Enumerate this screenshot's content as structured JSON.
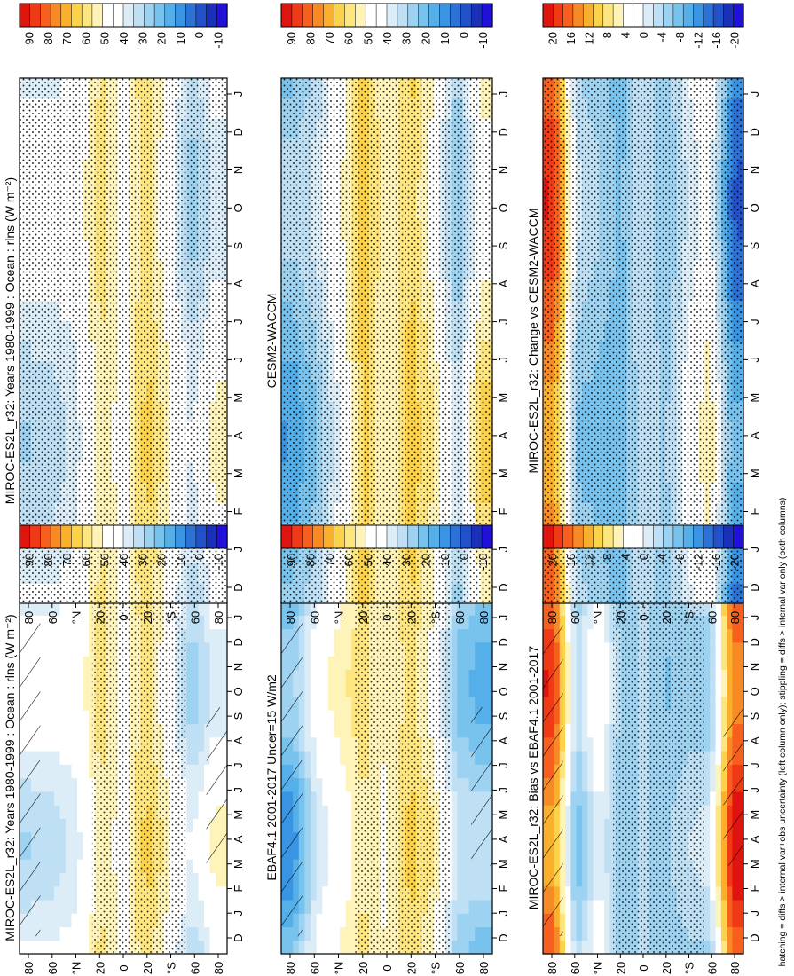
{
  "figure": {
    "footnote": "hatching = diffs > internal var+obs uncertainty (left column only); stippling = diffs > internal var only (both columns)"
  },
  "colorbars": {
    "absolute": {
      "labels": [
        "90",
        "80",
        "70",
        "60",
        "50",
        "40",
        "30",
        "20",
        "10",
        "0",
        "-10"
      ],
      "colors": [
        "#e0140e",
        "#f03a16",
        "#f65f1e",
        "#f88a26",
        "#fab02c",
        "#fbd24a",
        "#fde680",
        "#fef3b8",
        "#ffffff",
        "#ffffff",
        "#dcedf8",
        "#bfe0f4",
        "#9dd2f1",
        "#78c2ee",
        "#55b0ea",
        "#3a94e4",
        "#2c72d6",
        "#2250c8",
        "#1a30b8",
        "#2010d8"
      ]
    },
    "difference": {
      "labels": [
        "20",
        "16",
        "12",
        "8",
        "4",
        "0",
        "-4",
        "-8",
        "-12",
        "-16",
        "-20"
      ],
      "colors": [
        "#e0140e",
        "#f03a16",
        "#f65f1e",
        "#f88a26",
        "#fab02c",
        "#fbd24a",
        "#fde680",
        "#fef3b8",
        "#ffffff",
        "#ffffff",
        "#dcedf8",
        "#bfe0f4",
        "#9dd2f1",
        "#78c2ee",
        "#55b0ea",
        "#3a94e4",
        "#2c72d6",
        "#2250c8",
        "#1a30b8",
        "#2010d8"
      ]
    }
  },
  "chart_data": [
    {
      "type": "heatmap",
      "id": "A",
      "title": "MIROC-ES2L_r32: Years 1980-1999 : Ocean : rlns (W m⁻²)",
      "xlabel": "",
      "ylabel": "",
      "x_categories": [
        "D",
        "J",
        "F",
        "M",
        "A",
        "M",
        "J",
        "J",
        "A",
        "S",
        "O",
        "N",
        "D",
        "J"
      ],
      "y_ticks": [
        "80",
        "60",
        "°N",
        "20",
        "0",
        "20",
        "°S",
        "60",
        "80"
      ],
      "lat_range": [
        -90,
        90
      ],
      "colorbar": "absolute",
      "stippling": "partial",
      "hatching": "partial",
      "zonal_profile_W_m2": {
        "lat": [
          80,
          60,
          40,
          20,
          0,
          -20,
          -40,
          -60,
          -80
        ],
        "values": [
          38,
          38,
          42,
          58,
          48,
          62,
          48,
          32,
          45
        ]
      }
    },
    {
      "type": "heatmap",
      "id": "B",
      "title": "MIROC-ES2L_r32: Years 1980-1999 : Ocean : rlns (W m⁻²)",
      "xlabel": "",
      "ylabel": "",
      "x_categories": [
        "D",
        "J",
        "F",
        "M",
        "A",
        "M",
        "J",
        "J",
        "A",
        "S",
        "O",
        "N",
        "D",
        "J"
      ],
      "y_ticks": [
        "80",
        "60",
        "°N",
        "20",
        "0",
        "20",
        "°S",
        "60",
        "80"
      ],
      "lat_range": [
        -90,
        90
      ],
      "colorbar": "absolute",
      "stippling": "full",
      "zonal_profile_W_m2": {
        "lat": [
          80,
          60,
          40,
          20,
          0,
          -20,
          -40,
          -60,
          -80
        ],
        "values": [
          38,
          38,
          42,
          58,
          48,
          62,
          48,
          32,
          45
        ]
      }
    },
    {
      "type": "heatmap",
      "id": "C",
      "title": "EBAF4.1 2001-2017 Uncer=15 W/m2",
      "xlabel": "",
      "ylabel": "",
      "x_categories": [
        "D",
        "J",
        "F",
        "M",
        "A",
        "M",
        "J",
        "J",
        "A",
        "S",
        "O",
        "N",
        "D",
        "J"
      ],
      "y_ticks": [
        "80",
        "60",
        "°N",
        "20",
        "0",
        "20",
        "°S",
        "60",
        "80"
      ],
      "lat_range": [
        -90,
        90
      ],
      "colorbar": "absolute",
      "stippling": "partial",
      "hatching": "partial",
      "zonal_profile_W_m2": {
        "lat": [
          80,
          60,
          40,
          20,
          0,
          -20,
          -40,
          -60,
          -80
        ],
        "values": [
          18,
          40,
          50,
          58,
          50,
          62,
          52,
          28,
          24
        ]
      }
    },
    {
      "type": "heatmap",
      "id": "D",
      "title": "CESM2-WACCM",
      "xlabel": "",
      "ylabel": "",
      "x_categories": [
        "D",
        "J",
        "F",
        "M",
        "A",
        "M",
        "J",
        "J",
        "A",
        "S",
        "O",
        "N",
        "D",
        "J"
      ],
      "y_ticks": [
        "80",
        "60",
        "°N",
        "20",
        "0",
        "20",
        "°S",
        "60",
        "80"
      ],
      "lat_range": [
        -90,
        90
      ],
      "colorbar": "absolute",
      "stippling": "full",
      "zonal_profile_W_m2": {
        "lat": [
          80,
          60,
          40,
          20,
          0,
          -20,
          -40,
          -60,
          -80
        ],
        "values": [
          22,
          30,
          45,
          66,
          50,
          64,
          52,
          28,
          55
        ]
      }
    },
    {
      "type": "heatmap",
      "id": "E",
      "title": "MIROC-ES2L_r32: Bias vs EBAF4.1 2001-2017",
      "xlabel": "",
      "ylabel": "",
      "x_categories": [
        "D",
        "J",
        "F",
        "M",
        "A",
        "M",
        "J",
        "J",
        "A",
        "S",
        "O",
        "N",
        "D",
        "J"
      ],
      "y_ticks": [
        "80",
        "60",
        "°N",
        "20",
        "0",
        "20",
        "°S",
        "60",
        "80"
      ],
      "lat_range": [
        -90,
        90
      ],
      "colorbar": "difference",
      "stippling": "partial",
      "hatching": "partial",
      "zonal_profile_W_m2": {
        "lat": [
          80,
          60,
          40,
          20,
          0,
          -20,
          -40,
          -60,
          -80
        ],
        "values": [
          16,
          -6,
          2,
          -6,
          -4,
          -6,
          -4,
          -4,
          18
        ]
      }
    },
    {
      "type": "heatmap",
      "id": "F",
      "title": "MIROC-ES2L_r32: Change vs CESM2-WACCM",
      "xlabel": "",
      "ylabel": "",
      "x_categories": [
        "D",
        "J",
        "F",
        "M",
        "A",
        "M",
        "J",
        "J",
        "A",
        "S",
        "O",
        "N",
        "D",
        "J"
      ],
      "y_ticks": [
        "80",
        "60",
        "°N",
        "20",
        "0",
        "20",
        "°S",
        "60",
        "80"
      ],
      "lat_range": [
        -90,
        90
      ],
      "colorbar": "difference",
      "stippling": "full",
      "zonal_profile_W_m2": {
        "lat": [
          80,
          60,
          40,
          20,
          0,
          -20,
          -40,
          -60,
          -80
        ],
        "values": [
          16,
          -4,
          -6,
          -8,
          -2,
          -6,
          0,
          4,
          -12
        ]
      }
    }
  ]
}
